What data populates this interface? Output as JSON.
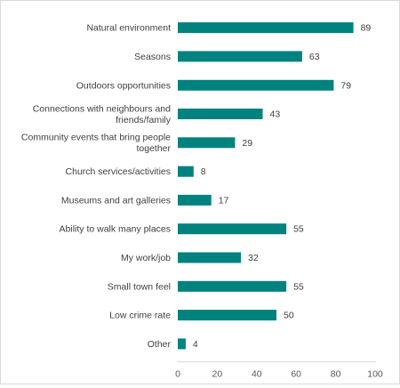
{
  "chart_data": {
    "type": "bar",
    "orientation": "horizontal",
    "title": "",
    "xlabel": "",
    "ylabel": "",
    "categories": [
      [
        "Natural environment"
      ],
      [
        "Seasons"
      ],
      [
        "Outdoors opportunities"
      ],
      [
        "Connections with neighbours and",
        "friends/family"
      ],
      [
        "Community events that bring people",
        "together"
      ],
      [
        "Church services/activities"
      ],
      [
        "Museums and art galleries"
      ],
      [
        "Ability to walk many places"
      ],
      [
        "My work/job"
      ],
      [
        "Small town feel"
      ],
      [
        "Low crime rate"
      ],
      [
        "Other"
      ]
    ],
    "values": [
      89,
      63,
      79,
      43,
      29,
      8,
      17,
      55,
      32,
      55,
      50,
      4
    ],
    "xlim": [
      0,
      100
    ],
    "xticks": [
      0,
      20,
      40,
      60,
      80,
      100
    ],
    "grid": false,
    "legend": "none",
    "bar_color": "#00827f",
    "data_labels": true
  }
}
